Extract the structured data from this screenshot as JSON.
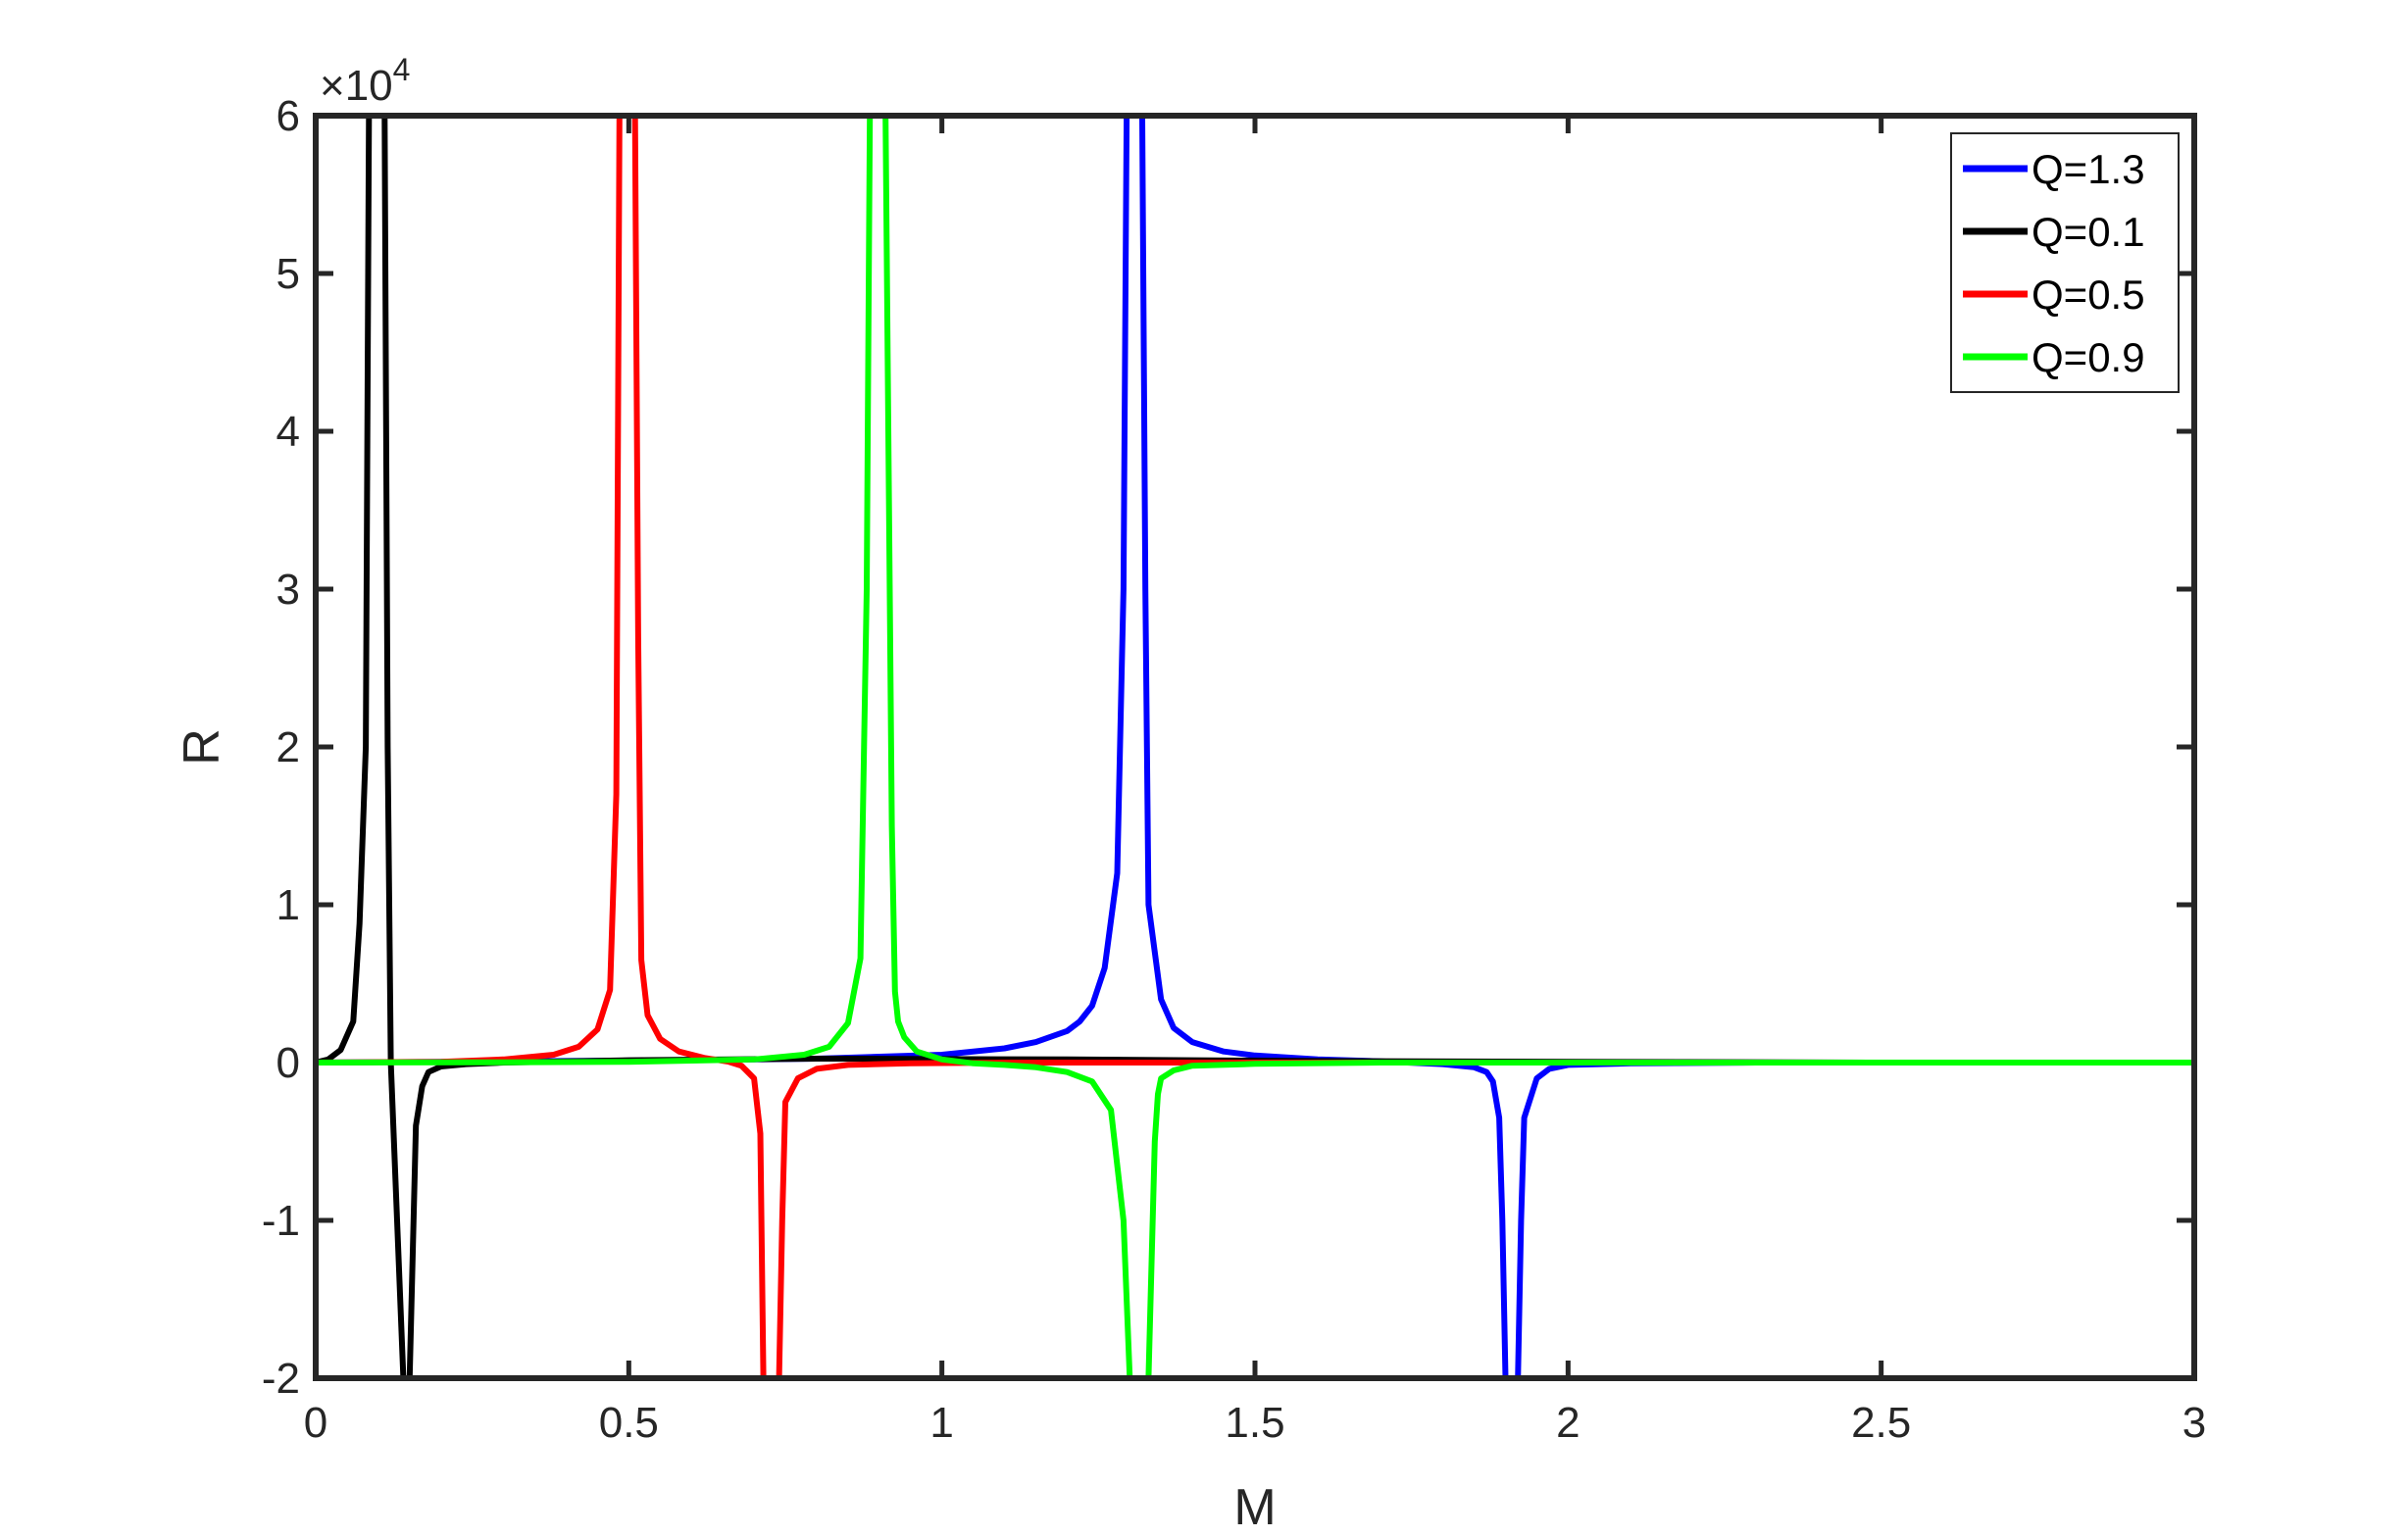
{
  "chart_data": {
    "type": "line",
    "xlabel": "M",
    "ylabel": "R",
    "xlim": [
      0,
      3
    ],
    "ylim": [
      -20000,
      60000
    ],
    "x_ticks": [
      0,
      0.5,
      1,
      1.5,
      2,
      2.5,
      3
    ],
    "x_tick_labels": [
      "0",
      "0.5",
      "1",
      "1.5",
      "2",
      "2.5",
      "3"
    ],
    "y_ticks": [
      -20000,
      -10000,
      0,
      10000,
      20000,
      30000,
      40000,
      50000,
      60000
    ],
    "y_tick_labels": [
      "-2",
      "-1",
      "0",
      "1",
      "2",
      "3",
      "4",
      "5",
      "6"
    ],
    "y_exponent_label": "×10",
    "y_exponent_power": "4",
    "grid": false,
    "legend_placement": "top-right",
    "series": [
      {
        "name": "Q=1.3",
        "color": "#0000ff",
        "x": [
          0,
          0.2,
          0.4,
          0.6,
          0.8,
          1.0,
          1.1,
          1.15,
          1.2,
          1.22,
          1.24,
          1.26,
          1.28,
          1.29,
          1.295,
          1.3,
          1.31,
          1.32,
          1.325,
          1.33,
          1.35,
          1.37,
          1.4,
          1.45,
          1.5,
          1.6,
          1.7,
          1.8,
          1.85,
          1.87,
          1.88,
          1.89,
          1.895,
          1.9,
          1.91,
          1.92,
          1.925,
          1.93,
          1.95,
          1.97,
          2.0,
          2.1,
          2.3,
          2.6,
          3.0
        ],
        "y": [
          0,
          50,
          100,
          150,
          250,
          500,
          900,
          1300,
          2000,
          2600,
          3600,
          6000,
          12000,
          30000,
          60000,
          60000,
          60000,
          60000,
          30000,
          10000,
          4000,
          2200,
          1300,
          700,
          450,
          200,
          80,
          -100,
          -300,
          -600,
          -1200,
          -3500,
          -10000,
          -20000,
          -20000,
          -20000,
          -10000,
          -3500,
          -1000,
          -400,
          -150,
          -50,
          0,
          0,
          0
        ]
      },
      {
        "name": "Q=0.1",
        "color": "#000000",
        "x": [
          0,
          0.02,
          0.04,
          0.06,
          0.07,
          0.08,
          0.085,
          0.09,
          0.1,
          0.11,
          0.115,
          0.12,
          0.13,
          0.14,
          0.145,
          0.15,
          0.16,
          0.17,
          0.18,
          0.2,
          0.24,
          0.3,
          0.5,
          0.8,
          1.2,
          1.6,
          2.0,
          2.5,
          3.0
        ],
        "y": [
          0,
          200,
          800,
          2600,
          8800,
          20000,
          60000,
          60000,
          60000,
          60000,
          20000,
          0,
          -10000,
          -20000,
          -20000,
          -20000,
          -4000,
          -1500,
          -600,
          -250,
          -100,
          0,
          150,
          250,
          200,
          100,
          50,
          0,
          0
        ]
      },
      {
        "name": "Q=0.5",
        "color": "#ff0000",
        "x": [
          0,
          0.2,
          0.3,
          0.38,
          0.42,
          0.45,
          0.47,
          0.48,
          0.485,
          0.49,
          0.5,
          0.51,
          0.515,
          0.52,
          0.53,
          0.55,
          0.58,
          0.62,
          0.66,
          0.68,
          0.7,
          0.71,
          0.715,
          0.72,
          0.73,
          0.74,
          0.745,
          0.75,
          0.77,
          0.8,
          0.85,
          0.95,
          1.1,
          1.3,
          1.6,
          2.0,
          3.0
        ],
        "y": [
          0,
          50,
          200,
          500,
          1000,
          2100,
          4600,
          17000,
          60000,
          60000,
          60000,
          60000,
          27000,
          6500,
          3000,
          1500,
          700,
          300,
          50,
          -200,
          -1000,
          -4500,
          -20000,
          -20000,
          -20000,
          -20000,
          -10000,
          -2500,
          -1000,
          -400,
          -150,
          -50,
          0,
          0,
          0,
          0,
          0
        ]
      },
      {
        "name": "Q=0.9",
        "color": "#00ff00",
        "x": [
          0,
          0.3,
          0.5,
          0.7,
          0.78,
          0.82,
          0.85,
          0.87,
          0.88,
          0.885,
          0.89,
          0.9,
          0.91,
          0.92,
          0.925,
          0.93,
          0.94,
          0.96,
          1.0,
          1.05,
          1.1,
          1.15,
          1.2,
          1.24,
          1.27,
          1.29,
          1.3,
          1.305,
          1.31,
          1.33,
          1.34,
          1.345,
          1.35,
          1.37,
          1.4,
          1.5,
          1.7,
          2.0,
          2.5,
          3.0
        ],
        "y": [
          0,
          20,
          50,
          200,
          500,
          1000,
          2500,
          6600,
          30000,
          60000,
          60000,
          60000,
          60000,
          15000,
          4500,
          2600,
          1600,
          700,
          200,
          -50,
          -150,
          -300,
          -600,
          -1200,
          -3000,
          -10000,
          -20000,
          -20000,
          -20000,
          -20000,
          -5000,
          -2000,
          -1000,
          -500,
          -200,
          -80,
          0,
          0,
          0,
          0
        ]
      }
    ]
  }
}
